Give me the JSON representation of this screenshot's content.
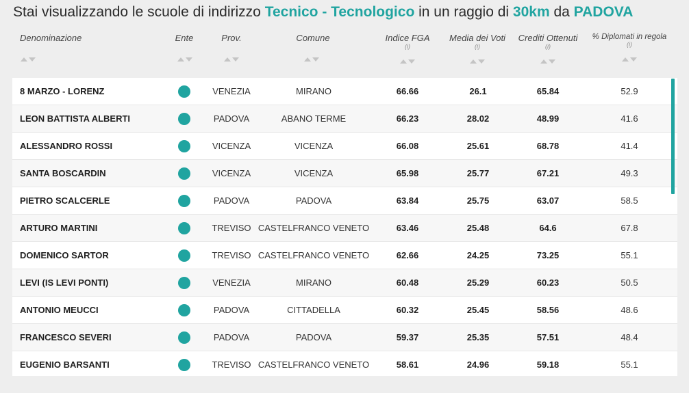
{
  "title": {
    "prefix": "Stai visualizzando le scuole di indirizzo",
    "indirizzo": "Tecnico - Tecnologico",
    "middle": "in un raggio di",
    "raggio": "30km",
    "da": "da",
    "citta": "PADOVA"
  },
  "headers": {
    "denominazione": "Denominazione",
    "ente": "Ente",
    "prov": "Prov.",
    "comune": "Comune",
    "indice_fga": "Indice FGA",
    "media_voti": "Media dei Voti",
    "crediti": "Crediti Ottenuti",
    "diplomati": "% Diplomati in regola",
    "info": "(i)"
  },
  "colors": {
    "accent": "#20a4a0"
  },
  "rows": [
    {
      "name": "8 MARZO - LORENZ",
      "prov": "VENEZIA",
      "comune": "MIRANO",
      "fga": "66.66",
      "media": "26.1",
      "crediti": "65.84",
      "diplomati": "52.9"
    },
    {
      "name": "LEON BATTISTA ALBERTI",
      "prov": "PADOVA",
      "comune": "ABANO TERME",
      "fga": "66.23",
      "media": "28.02",
      "crediti": "48.99",
      "diplomati": "41.6"
    },
    {
      "name": "ALESSANDRO ROSSI",
      "prov": "VICENZA",
      "comune": "VICENZA",
      "fga": "66.08",
      "media": "25.61",
      "crediti": "68.78",
      "diplomati": "41.4"
    },
    {
      "name": "SANTA BOSCARDIN",
      "prov": "VICENZA",
      "comune": "VICENZA",
      "fga": "65.98",
      "media": "25.77",
      "crediti": "67.21",
      "diplomati": "49.3"
    },
    {
      "name": "PIETRO SCALCERLE",
      "prov": "PADOVA",
      "comune": "PADOVA",
      "fga": "63.84",
      "media": "25.75",
      "crediti": "63.07",
      "diplomati": "58.5"
    },
    {
      "name": "ARTURO MARTINI",
      "prov": "TREVISO",
      "comune": "CASTELFRANCO VENETO",
      "fga": "63.46",
      "media": "25.48",
      "crediti": "64.6",
      "diplomati": "67.8"
    },
    {
      "name": "DOMENICO SARTOR",
      "prov": "TREVISO",
      "comune": "CASTELFRANCO VENETO",
      "fga": "62.66",
      "media": "24.25",
      "crediti": "73.25",
      "diplomati": "55.1"
    },
    {
      "name": "LEVI (IS LEVI PONTI)",
      "prov": "VENEZIA",
      "comune": "MIRANO",
      "fga": "60.48",
      "media": "25.29",
      "crediti": "60.23",
      "diplomati": "50.5"
    },
    {
      "name": "ANTONIO MEUCCI",
      "prov": "PADOVA",
      "comune": "CITTADELLA",
      "fga": "60.32",
      "media": "25.45",
      "crediti": "58.56",
      "diplomati": "48.6"
    },
    {
      "name": "FRANCESCO SEVERI",
      "prov": "PADOVA",
      "comune": "PADOVA",
      "fga": "59.37",
      "media": "25.35",
      "crediti": "57.51",
      "diplomati": "48.4"
    },
    {
      "name": "EUGENIO BARSANTI",
      "prov": "TREVISO",
      "comune": "CASTELFRANCO VENETO",
      "fga": "58.61",
      "media": "24.96",
      "crediti": "59.18",
      "diplomati": "55.1"
    }
  ]
}
